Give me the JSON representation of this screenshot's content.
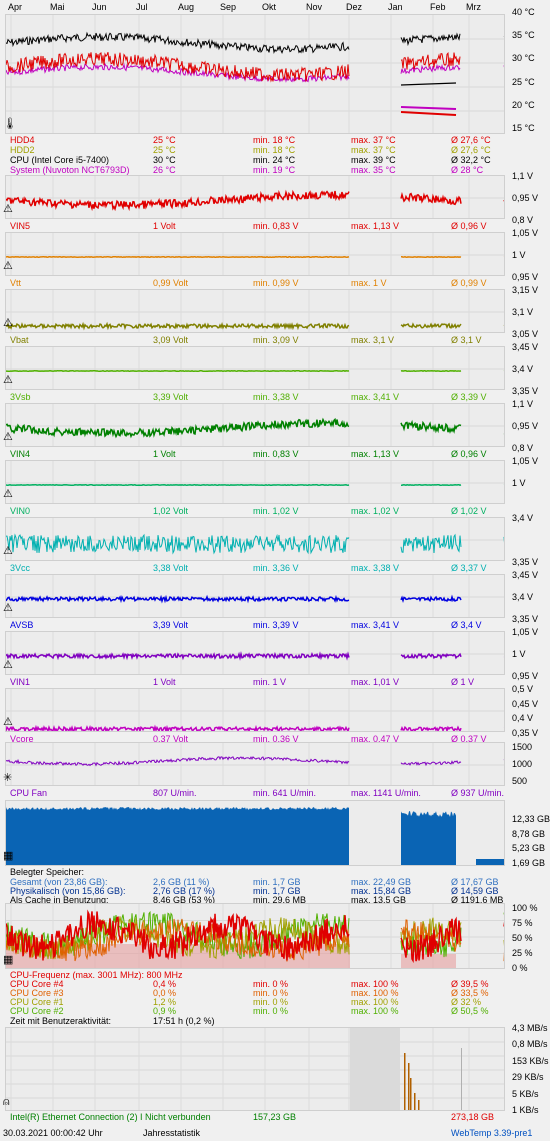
{
  "months": [
    "Apr",
    "Mai",
    "Jun",
    "Jul",
    "Aug",
    "Sep",
    "Okt",
    "Nov",
    "Dez",
    "Jan",
    "Feb",
    "Mrz"
  ],
  "temp": {
    "axis": [
      "40 °C",
      "35 °C",
      "30 °C",
      "25 °C",
      "20 °C",
      "15 °C"
    ],
    "rows": [
      {
        "name": "HDD4",
        "cur": "25 °C",
        "min": "min. 18 °C",
        "max": "max. 37 °C",
        "avg": "Ø 27,6 °C",
        "color": "#e00000"
      },
      {
        "name": "HDD2",
        "cur": "25 °C",
        "min": "min. 18 °C",
        "max": "max. 37 °C",
        "avg": "Ø 27,6 °C",
        "color": "#a0a000"
      },
      {
        "name": "CPU (Intel Core i5-7400)",
        "cur": "30 °C",
        "min": "min. 24 °C",
        "max": "max. 39 °C",
        "avg": "Ø 32,2 °C",
        "color": "#000000"
      },
      {
        "name": "System (Nuvoton NCT6793D)",
        "cur": "26 °C",
        "min": "min. 19 °C",
        "max": "max. 35 °C",
        "avg": "Ø 28 °C",
        "color": "#c000c0"
      }
    ]
  },
  "volts": [
    {
      "id": "vin5",
      "axis": [
        "1,1 V",
        "0,95 V",
        "0,8 V"
      ],
      "name": "VIN5",
      "cur": "1 Volt",
      "min": "min. 0,83 V",
      "max": "max. 1,13 V",
      "avg": "Ø 0,96 V",
      "color": "#e00000"
    },
    {
      "id": "vtt",
      "axis": [
        "1,05 V",
        "1 V",
        "0,95 V"
      ],
      "name": "Vtt",
      "cur": "0,99 Volt",
      "min": "min. 0,99 V",
      "max": "max. 1 V",
      "avg": "Ø 0,99 V",
      "color": "#e08000"
    },
    {
      "id": "vbat",
      "axis": [
        "3,15 V",
        "3,1 V",
        "3,05 V"
      ],
      "name": "Vbat",
      "cur": "3,09 Volt",
      "min": "min. 3,09 V",
      "max": "max. 3,1 V",
      "avg": "Ø 3,1 V",
      "color": "#808000"
    },
    {
      "id": "3vsb",
      "axis": [
        "3,45 V",
        "3,4 V",
        "3,35 V"
      ],
      "name": "3Vsb",
      "cur": "3,39 Volt",
      "min": "min. 3,38 V",
      "max": "max. 3,41 V",
      "avg": "Ø 3,39 V",
      "color": "#50b000"
    },
    {
      "id": "vin4",
      "axis": [
        "1,1 V",
        "0,95 V",
        "0,8 V"
      ],
      "name": "VIN4",
      "cur": "1 Volt",
      "min": "min. 0,83 V",
      "max": "max. 1,13 V",
      "avg": "Ø 0,96 V",
      "color": "#008000"
    },
    {
      "id": "vin0",
      "axis": [
        "1,05 V",
        "1 V",
        ""
      ],
      "name": "VIN0",
      "cur": "1,02 Volt",
      "min": "min. 1,02 V",
      "max": "max. 1,02 V",
      "avg": "Ø 1,02 V",
      "color": "#00b060"
    },
    {
      "id": "3vcc",
      "axis": [
        "3,4 V",
        "",
        "3,35 V"
      ],
      "name": "3Vcc",
      "cur": "3,38 Volt",
      "min": "min. 3,36 V",
      "max": "max. 3,38 V",
      "avg": "Ø 3,37 V",
      "color": "#00b0b0"
    },
    {
      "id": "avsb",
      "axis": [
        "3,45 V",
        "3,4 V",
        "3,35 V"
      ],
      "name": "AVSB",
      "cur": "3,39 Volt",
      "min": "min. 3,39 V",
      "max": "max. 3,41 V",
      "avg": "Ø 3,4 V",
      "color": "#0000e0"
    },
    {
      "id": "vin1",
      "axis": [
        "1,05 V",
        "1 V",
        "0,95 V"
      ],
      "name": "VIN1",
      "cur": "1 Volt",
      "min": "min. 1 V",
      "max": "max. 1,01 V",
      "avg": "Ø 1 V",
      "color": "#8000c0"
    },
    {
      "id": "vcore",
      "axis": [
        "0,5 V",
        "0,45 V",
        "0,4 V",
        "0,35 V"
      ],
      "name": "Vcore",
      "cur": "0,37 Volt",
      "min": "min. 0,36 V",
      "max": "max. 0,47 V",
      "avg": "Ø 0,37 V",
      "color": "#c000c0"
    }
  ],
  "fan": {
    "axis": [
      "1500",
      "1000",
      "500"
    ],
    "name": "CPU Fan",
    "cur": "807 U/min.",
    "min": "min. 641 U/min.",
    "max": "max. 1141 U/min.",
    "avg": "Ø 937 U/min.",
    "color": "#8000c0"
  },
  "mem": {
    "axis": [
      "12,33 GB",
      "8,78 GB",
      "5,23 GB",
      "1,69 GB"
    ],
    "title": "Belegter Speicher:",
    "rows": [
      {
        "name": "Gesamt (von 23,86 GB):",
        "cur": "2,6 GB (11 %)",
        "min": "min. 1,7 GB",
        "max": "max. 22,49 GB",
        "avg": "Ø 17,67 GB",
        "color": "#3070c0"
      },
      {
        "name": "Physikalisch (von 15,86 GB):",
        "cur": "2,76 GB (17 %)",
        "min": "min. 1,7 GB",
        "max": "max. 15,84 GB",
        "avg": "Ø 14,59 GB",
        "color": "#003090"
      },
      {
        "name": "Als Cache in Benutzung:",
        "cur": "8,46 GB (53 %)",
        "min": "min. 29,6 MB",
        "max": "max. 13,5 GB",
        "avg": "Ø 1191,6 MB",
        "color": "#000000"
      }
    ]
  },
  "cpu": {
    "axis": [
      "100 %",
      "75 %",
      "50 %",
      "25 %",
      "0 %"
    ],
    "freq": "CPU-Frequenz (max. 3001 MHz): 800 MHz",
    "rows": [
      {
        "name": "CPU Core #4",
        "cur": "0,4 %",
        "min": "min. 0 %",
        "max": "max. 100 %",
        "avg": "Ø 39,5 %",
        "color": "#e00000"
      },
      {
        "name": "CPU Core #3",
        "cur": "0,0 %",
        "min": "min. 0 %",
        "max": "max. 100 %",
        "avg": "Ø 33,5 %",
        "color": "#e06000"
      },
      {
        "name": "CPU Core #1",
        "cur": "1,2 %",
        "min": "min. 0 %",
        "max": "max. 100 %",
        "avg": "Ø 32 %",
        "color": "#a0a000"
      },
      {
        "name": "CPU Core #2",
        "cur": "0,9 %",
        "min": "min. 0 %",
        "max": "max. 100 %",
        "avg": "Ø 50,5 %",
        "color": "#50b000"
      }
    ],
    "active_label": "Zeit mit Benutzeraktivität:",
    "active_value": "17:51 h (0,2 %)"
  },
  "net": {
    "axis": [
      "4,3 MB/s",
      "0,8 MB/s",
      "153 KB/s",
      "29 KB/s",
      "5 KB/s",
      "1 KB/s"
    ],
    "name": "Intel(R) Ethernet Connection (2) I  Nicht verbunden",
    "down": "157,23 GB",
    "up": "273,18 GB"
  },
  "footer": {
    "timestamp": "30.03.2021 00:00:42 Uhr",
    "title": "Jahresstatistik",
    "version": "WebTemp 3.39-pre1"
  }
}
